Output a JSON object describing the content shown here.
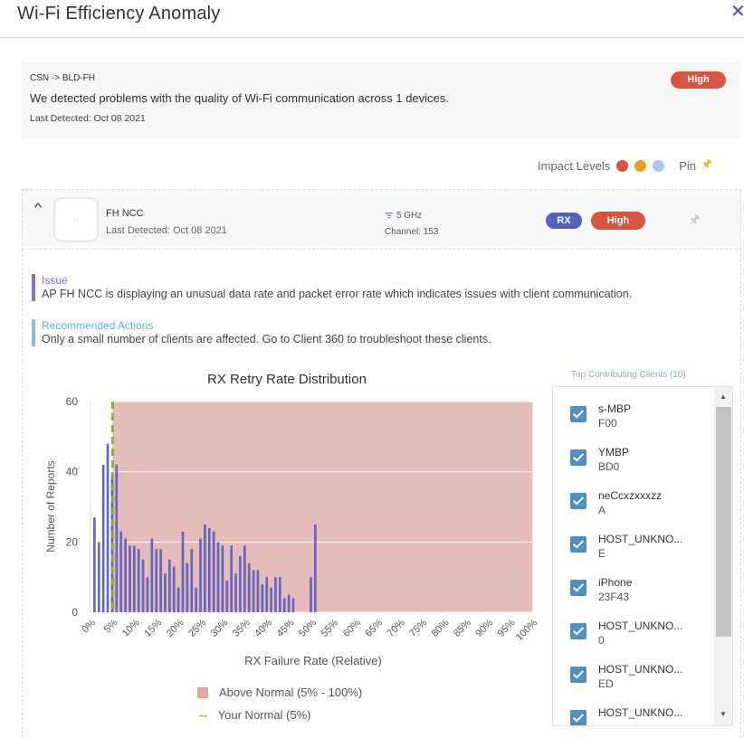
{
  "header": {
    "title": "Wi-Fi Efficiency Anomaly",
    "close_icon": "close-icon"
  },
  "summary": {
    "route": "CSN -> BLD-FH",
    "message": "We detected problems with the quality of Wi-Fi communication across 1 devices.",
    "last_detected": "Last Detected: Oct 08 2021",
    "severity": "High"
  },
  "impact": {
    "label": "Impact Levels",
    "colors": [
      "#d65440",
      "#e3a21a",
      "#a9c8ee"
    ],
    "pin_label": "Pin"
  },
  "device": {
    "name": "FH NCC",
    "last_detected": "Last Detected: Oct 08 2021",
    "band": "5 GHz",
    "channel": "Channel: 153",
    "direction": "RX",
    "severity": "High"
  },
  "issue": {
    "label": "Issue",
    "text": "AP FH NCC is displaying an unusual data rate and packet error rate which indicates issues with client communication."
  },
  "recommended": {
    "label": "Recommended Actions",
    "text": "Only a small number of clients are affected. Go to Client 360 to troubleshoot these clients."
  },
  "legend": {
    "above_normal": "Above Normal (5% - 100%)",
    "your_normal": "Your Normal (5%)"
  },
  "clients": {
    "title": "Top Contributing Clients (10)",
    "items": [
      {
        "name": "s-MBP",
        "mac": "F00"
      },
      {
        "name": "YMBP",
        "mac": "BD0"
      },
      {
        "name": "neCcxzxxxzz",
        "mac": "A"
      },
      {
        "name": "HOST_UNKNO...",
        "mac": "E"
      },
      {
        "name": "iPhone",
        "mac": "23F43"
      },
      {
        "name": "HOST_UNKNO...",
        "mac": "0"
      },
      {
        "name": "HOST_UNKNO...",
        "mac": "ED"
      },
      {
        "name": "HOST_UNKNO...",
        "mac": ""
      }
    ]
  },
  "chart_data": {
    "type": "bar",
    "title": "RX Retry Rate Distribution",
    "xlabel": "RX Failure Rate (Relative)",
    "ylabel": "Number of Reports",
    "ylim": [
      0,
      60
    ],
    "xlim": [
      0,
      100
    ],
    "yticks": [
      0,
      20,
      40,
      60
    ],
    "xticks": [
      "0%",
      "5%",
      "10%",
      "15%",
      "20%",
      "25%",
      "30%",
      "35%",
      "40%",
      "45%",
      "50%",
      "55%",
      "60%",
      "65%",
      "70%",
      "75%",
      "80%",
      "85%",
      "90%",
      "95%",
      "100%"
    ],
    "above_normal_range": [
      5,
      100
    ],
    "your_normal": 5,
    "x": [
      1,
      2,
      3,
      4,
      5,
      6,
      7,
      8,
      9,
      10,
      11,
      12,
      13,
      14,
      15,
      16,
      17,
      18,
      19,
      20,
      21,
      22,
      23,
      24,
      25,
      26,
      27,
      28,
      29,
      30,
      31,
      32,
      33,
      34,
      35,
      36,
      37,
      38,
      39,
      40,
      41,
      42,
      43,
      44,
      45,
      46,
      47,
      48,
      49,
      50,
      51
    ],
    "values": [
      27,
      20,
      42,
      48,
      39,
      42,
      23,
      21,
      19,
      19,
      18,
      15,
      10,
      21,
      18,
      18,
      11,
      15,
      13,
      7,
      23,
      14,
      18,
      7,
      21,
      25,
      24,
      23,
      20,
      19,
      9,
      19,
      11,
      16,
      19,
      14,
      12,
      12,
      8,
      10,
      7,
      10,
      10,
      4,
      5,
      4,
      0,
      0,
      0,
      10,
      25
    ],
    "colors": {
      "bar": "#6666bf",
      "above_normal": "#e6bcbb",
      "normal_line": "#8cb03a"
    }
  }
}
